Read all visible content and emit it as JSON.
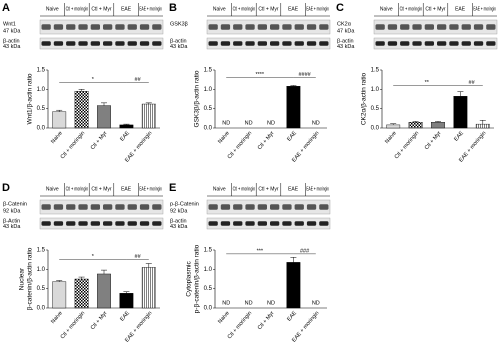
{
  "chart_data": [
    {
      "type": "bar",
      "panel": "A",
      "ylabel": [
        "Wnt1/β-actin ratio"
      ],
      "blot_rows": [
        [
          "Wnt1",
          "47 kDa"
        ],
        [
          "β-actin",
          "43 kDa"
        ]
      ],
      "categories": [
        "Naive",
        "Ctl + moringin",
        "Ctl + Myr",
        "EAE",
        "EAE + moringin"
      ],
      "values": [
        0.42,
        0.95,
        0.58,
        0.08,
        0.62
      ],
      "errors": [
        0.04,
        0.05,
        0.07,
        0.02,
        0.03
      ],
      "bar_styles": [
        "#d9d9d9",
        "checker",
        "#808080",
        "#000000",
        "stripes"
      ],
      "ylim": [
        0,
        1.5
      ],
      "yticks": [
        {
          "value": 0,
          "label": "0.0"
        },
        {
          "value": 0.5,
          "label": "0.5"
        },
        {
          "value": 1,
          "label": "1.0"
        },
        {
          "value": 1.5,
          "label": "1.5"
        }
      ],
      "annotations": [
        {
          "text": "*",
          "between": [
            "Naive",
            "EAE"
          ],
          "y": 1.18
        },
        {
          "text": "##",
          "between": [
            "EAE",
            "EAE + moringin"
          ],
          "y": 1.18
        }
      ]
    },
    {
      "type": "bar",
      "panel": "B",
      "ylabel": [
        "GSK3β/β-actin ratio"
      ],
      "blot_rows": [
        [
          "GSK3β",
          ""
        ],
        [
          "β-actin",
          "43 kDa"
        ]
      ],
      "categories": [
        "Naive",
        "Ctl + moringin",
        "Ctl + Myr",
        "EAE",
        "EAE + moringin"
      ],
      "values": [
        null,
        null,
        null,
        1.08,
        null
      ],
      "value_labels": [
        "ND",
        "ND",
        "ND",
        null,
        "ND"
      ],
      "errors": [
        null,
        null,
        null,
        0.02,
        null
      ],
      "bar_styles": [
        "#d9d9d9",
        "checker",
        "#808080",
        "#000000",
        "stripes"
      ],
      "ylim": [
        0,
        1.5
      ],
      "yticks": [
        {
          "value": 0,
          "label": "0.0"
        },
        {
          "value": 0.5,
          "label": "0.5"
        },
        {
          "value": 1,
          "label": "1.0"
        },
        {
          "value": 1.5,
          "label": "1.5"
        }
      ],
      "annotations": [
        {
          "text": "****",
          "between": [
            "Naive",
            "EAE"
          ],
          "y": 1.3
        },
        {
          "text": "####",
          "between": [
            "EAE",
            "EAE + moringin"
          ],
          "y": 1.3
        }
      ]
    },
    {
      "type": "bar",
      "panel": "C",
      "ylabel": [
        "CK2α/β-actin ratio"
      ],
      "blot_rows": [
        [
          "CK2α",
          "47 kDa"
        ],
        [
          "β-actin",
          "43 kDa"
        ]
      ],
      "categories": [
        "Naive",
        "Ctl + moringin",
        "Ctl + Myr",
        "EAE",
        "EAE + moringin"
      ],
      "values": [
        0.08,
        0.15,
        0.15,
        0.82,
        0.1
      ],
      "errors": [
        0.03,
        0.02,
        0.02,
        0.12,
        0.1
      ],
      "bar_styles": [
        "#d9d9d9",
        "checker",
        "#808080",
        "#000000",
        "stripes"
      ],
      "ylim": [
        0,
        1.5
      ],
      "yticks": [
        {
          "value": 0,
          "label": "0.0"
        },
        {
          "value": 0.5,
          "label": "0.5"
        },
        {
          "value": 1,
          "label": "1.0"
        },
        {
          "value": 1.5,
          "label": "1.5"
        }
      ],
      "annotations": [
        {
          "text": "**",
          "between": [
            "Naive",
            "EAE"
          ],
          "y": 1.1
        },
        {
          "text": "##",
          "between": [
            "EAE",
            "EAE + moringin"
          ],
          "y": 1.1
        }
      ]
    },
    {
      "type": "bar",
      "panel": "D",
      "ylabel": [
        "Nuclear",
        "β-catenin/β-actin ratio"
      ],
      "blot_rows": [
        [
          "β-Catenin",
          "92 kDa"
        ],
        [
          "β-Actin",
          "43 kDa"
        ]
      ],
      "categories": [
        "Naive",
        "Ctl + moringin",
        "Ctl + Myr",
        "EAE",
        "EAE + moringin"
      ],
      "values": [
        0.68,
        0.75,
        0.88,
        0.38,
        1.05
      ],
      "errors": [
        0.03,
        0.05,
        0.1,
        0.04,
        0.1
      ],
      "bar_styles": [
        "#d9d9d9",
        "checker",
        "#808080",
        "#000000",
        "stripes"
      ],
      "ylim": [
        0,
        1.5
      ],
      "yticks": [
        {
          "value": 0,
          "label": "0.0"
        },
        {
          "value": 0.5,
          "label": "0.5"
        },
        {
          "value": 1,
          "label": "1.0"
        },
        {
          "value": 1.5,
          "label": "1.5"
        }
      ],
      "annotations": [
        {
          "text": "*",
          "between": [
            "Naive",
            "EAE"
          ],
          "y": 1.25
        },
        {
          "text": "##",
          "between": [
            "EAE",
            "EAE + moringin"
          ],
          "y": 1.25
        }
      ]
    },
    {
      "type": "bar",
      "panel": "E",
      "ylabel": [
        "Cytoplasmic",
        "p-β-catenin/β-actin ratio"
      ],
      "blot_rows": [
        [
          "p-β-Catenin",
          "92 kDa"
        ],
        [
          "β-actin",
          "43 kDa"
        ]
      ],
      "categories": [
        "Naive",
        "Ctl + moringin",
        "Ctl + Myr",
        "EAE",
        "EAE + moringin"
      ],
      "values": [
        null,
        null,
        null,
        1.18,
        null
      ],
      "value_labels": [
        "ND",
        "ND",
        "ND",
        null,
        "ND"
      ],
      "errors": [
        null,
        null,
        null,
        0.13,
        null
      ],
      "bar_styles": [
        "#d9d9d9",
        "checker",
        "#808080",
        "#000000",
        "stripes"
      ],
      "ylim": [
        0,
        1.5
      ],
      "yticks": [
        {
          "value": 0,
          "label": "0.0"
        },
        {
          "value": 0.5,
          "label": "0.5"
        },
        {
          "value": 1,
          "label": "1.0"
        },
        {
          "value": 1.5,
          "label": "1.5"
        }
      ],
      "annotations": [
        {
          "text": "***",
          "between": [
            "Naive",
            "EAE"
          ],
          "y": 1.4
        },
        {
          "text": "###",
          "between": [
            "EAE",
            "EAE + moringin"
          ],
          "y": 1.4
        }
      ]
    }
  ]
}
